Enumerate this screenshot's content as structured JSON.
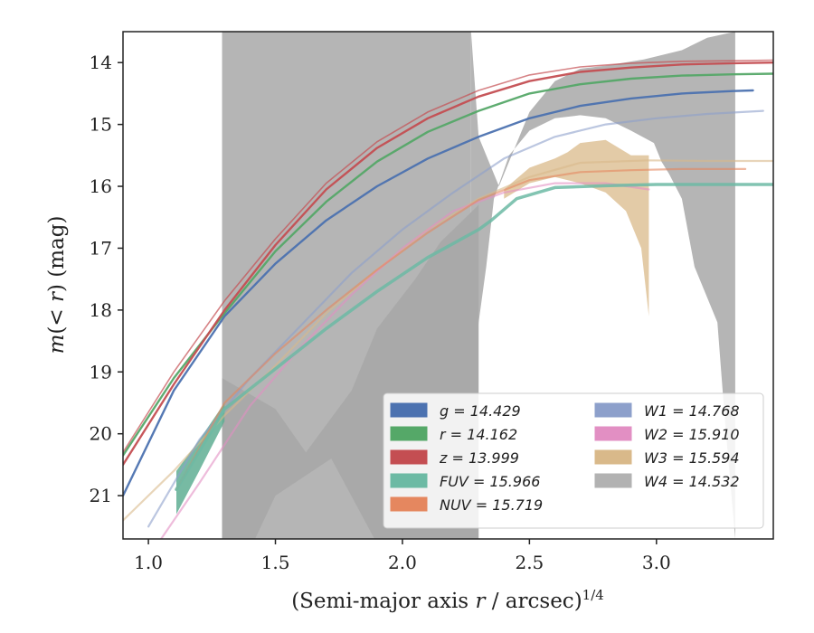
{
  "chart_data": {
    "type": "line",
    "xlabel": "(Semi-major axis r / arcsec)^{1/4}",
    "ylabel": "m(< r) (mag)",
    "xlim": [
      0.9,
      3.46
    ],
    "ylim": [
      21.7,
      13.5
    ],
    "y_inverted": true,
    "xticks": [
      "1.0",
      "1.5",
      "2.0",
      "2.5",
      "3.0"
    ],
    "yticks": [
      "14",
      "15",
      "16",
      "17",
      "18",
      "19",
      "20",
      "21"
    ],
    "grid": false,
    "legend_position": "lower-right",
    "legend_columns": 2,
    "series": [
      {
        "name": "g",
        "label": "g = 14.429",
        "color": "#4c72b0",
        "x": [
          0.9,
          1.1,
          1.3,
          1.5,
          1.7,
          1.9,
          2.1,
          2.3,
          2.5,
          2.7,
          2.9,
          3.1,
          3.3,
          3.38
        ],
        "y": [
          21.0,
          19.3,
          18.1,
          17.25,
          16.55,
          16.0,
          15.55,
          15.2,
          14.9,
          14.7,
          14.58,
          14.5,
          14.46,
          14.45
        ]
      },
      {
        "name": "r",
        "label": "r = 14.162",
        "color": "#55a868",
        "x": [
          0.9,
          1.1,
          1.3,
          1.5,
          1.7,
          1.9,
          2.1,
          2.3,
          2.5,
          2.7,
          2.9,
          3.1,
          3.3,
          3.46
        ],
        "y": [
          20.35,
          19.1,
          18.05,
          17.05,
          16.25,
          15.6,
          15.12,
          14.78,
          14.5,
          14.35,
          14.26,
          14.21,
          14.19,
          14.18
        ]
      },
      {
        "name": "z",
        "label": "z = 13.999",
        "color": "#c44e52",
        "x": [
          0.9,
          1.1,
          1.3,
          1.5,
          1.7,
          1.9,
          2.1,
          2.3,
          2.5,
          2.7,
          2.9,
          3.1,
          3.3,
          3.46
        ],
        "y": [
          20.5,
          19.2,
          18.0,
          16.95,
          16.05,
          15.38,
          14.9,
          14.55,
          14.3,
          14.15,
          14.08,
          14.03,
          14.01,
          14.0
        ],
        "upper_y": [
          20.3,
          19.0,
          17.85,
          16.85,
          15.95,
          15.28,
          14.8,
          14.45,
          14.2,
          14.07,
          14.01,
          13.98,
          13.97,
          13.96
        ]
      },
      {
        "name": "FUV",
        "label": "FUV = 15.966",
        "color": "#6cbaa4",
        "x": [
          1.11,
          1.3,
          1.5,
          1.7,
          1.9,
          2.1,
          2.3,
          2.35,
          2.45,
          2.6,
          2.8,
          3.0,
          3.2,
          3.46
        ],
        "y": [
          20.9,
          19.6,
          18.95,
          18.3,
          17.7,
          17.15,
          16.7,
          16.55,
          16.2,
          16.02,
          15.99,
          15.97,
          15.97,
          15.97
        ]
      },
      {
        "name": "NUV",
        "label": "NUV = 15.719",
        "color": "#e5875f",
        "x": [
          1.11,
          1.3,
          1.5,
          1.7,
          1.9,
          2.1,
          2.3,
          2.5,
          2.7,
          2.9,
          3.1,
          3.35
        ],
        "y": [
          20.9,
          19.5,
          18.7,
          18.0,
          17.35,
          16.75,
          16.22,
          15.9,
          15.77,
          15.74,
          15.72,
          15.72
        ]
      },
      {
        "name": "W1",
        "label": "W1 = 14.768",
        "color": "#8da0cb",
        "x": [
          1.0,
          1.2,
          1.4,
          1.6,
          1.8,
          2.0,
          2.2,
          2.4,
          2.6,
          2.8,
          3.0,
          3.2,
          3.42
        ],
        "y": [
          21.5,
          20.1,
          19.1,
          18.25,
          17.4,
          16.7,
          16.1,
          15.55,
          15.2,
          15.0,
          14.9,
          14.83,
          14.78
        ]
      },
      {
        "name": "W2",
        "label": "W2 = 15.910",
        "color": "#e28fc3",
        "x": [
          1.05,
          1.2,
          1.4,
          1.6,
          1.8,
          2.0,
          2.2,
          2.4,
          2.6,
          2.8,
          2.97
        ],
        "y": [
          21.7,
          20.8,
          19.55,
          18.6,
          17.75,
          17.0,
          16.4,
          16.1,
          15.95,
          15.95,
          16.05
        ]
      },
      {
        "name": "W3",
        "label": "W3 = 15.594",
        "color": "#d9b98a",
        "x": [
          0.9,
          1.1,
          1.3,
          1.5,
          1.7,
          1.9,
          2.1,
          2.3,
          2.5,
          2.7,
          2.97,
          3.2,
          3.46
        ],
        "y": [
          21.4,
          20.6,
          19.7,
          18.9,
          18.05,
          17.35,
          16.7,
          16.2,
          15.85,
          15.62,
          15.58,
          15.59,
          15.59
        ]
      },
      {
        "name": "W4",
        "label": "W4 = 14.532",
        "color": "#b2b2b2",
        "x": [
          1.29,
          1.5,
          1.8,
          2.1,
          2.3,
          2.5,
          2.7,
          2.9,
          3.1,
          3.31
        ],
        "y": [
          19.3,
          19.8,
          19.2,
          17.8,
          16.2,
          15.2,
          14.8,
          14.7,
          14.6,
          14.53
        ]
      }
    ]
  }
}
